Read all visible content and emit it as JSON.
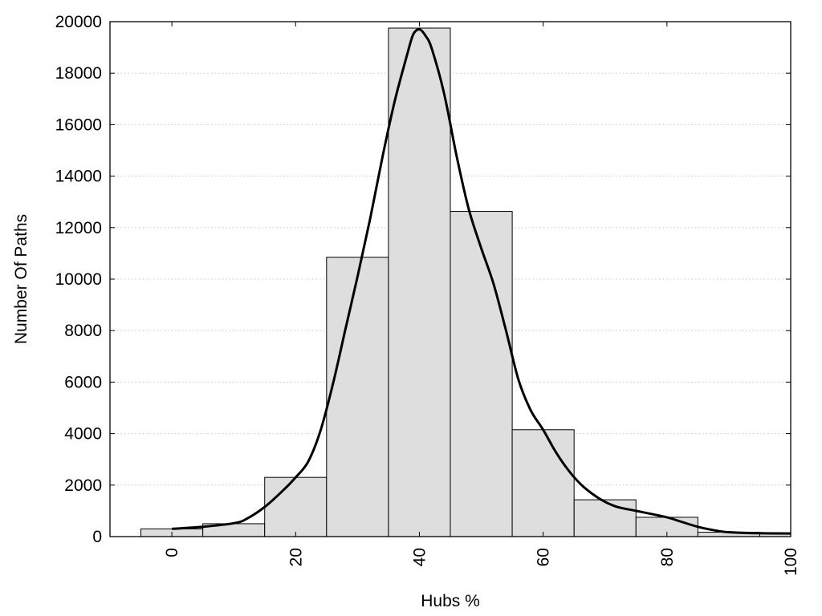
{
  "chart_data": {
    "type": "bar",
    "xlabel": "Hubs %",
    "ylabel": "Number Of Paths",
    "xlim": [
      -10,
      100
    ],
    "ylim": [
      0,
      20000
    ],
    "x_ticks": [
      0,
      20,
      40,
      60,
      80,
      100
    ],
    "y_ticks": [
      0,
      2000,
      4000,
      6000,
      8000,
      10000,
      12000,
      14000,
      16000,
      18000,
      20000
    ],
    "grid": "horizontal-dotted",
    "colors": {
      "bar_fill": "#dedede",
      "bar_stroke": "#000000",
      "curve": "#000000"
    },
    "series": [
      {
        "kind": "histogram",
        "bin_width": 10,
        "x": [
          0,
          10,
          20,
          30,
          40,
          50,
          60,
          70,
          80,
          90,
          100
        ],
        "values": [
          300,
          500,
          2300,
          10850,
          19750,
          12630,
          4150,
          1430,
          750,
          170,
          120
        ]
      },
      {
        "kind": "density-curve",
        "x": [
          0,
          5,
          10,
          12,
          15,
          18,
          20,
          22,
          24,
          26,
          28,
          30,
          32,
          34,
          36,
          38,
          39,
          40,
          41,
          42,
          44,
          46,
          48,
          50,
          52,
          54,
          56,
          58,
          60,
          62,
          64,
          66,
          68,
          70,
          72,
          75,
          80,
          82,
          85,
          88,
          90,
          95,
          100
        ],
        "values": [
          300,
          380,
          520,
          680,
          1150,
          1800,
          2300,
          2900,
          4100,
          5900,
          8000,
          10100,
          12300,
          14700,
          16900,
          18700,
          19500,
          19700,
          19450,
          18950,
          17200,
          14800,
          12700,
          11200,
          9800,
          8000,
          6100,
          4900,
          4150,
          3300,
          2600,
          2050,
          1650,
          1350,
          1150,
          1000,
          750,
          600,
          380,
          230,
          170,
          130,
          120
        ]
      }
    ]
  }
}
